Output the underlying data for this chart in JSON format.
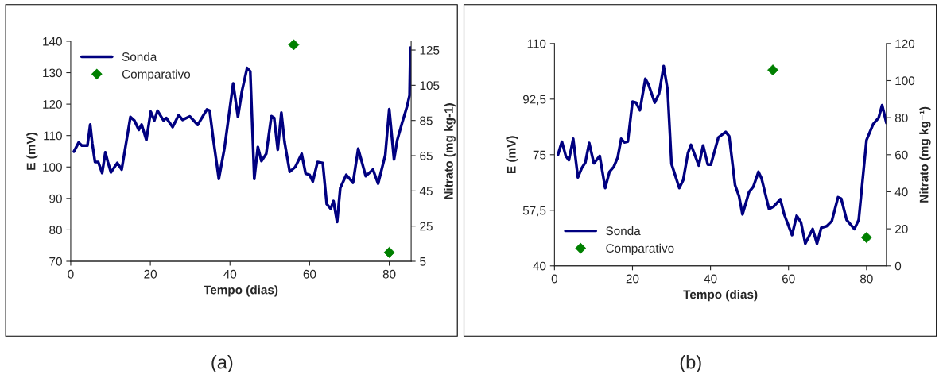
{
  "chart_data": [
    {
      "type": "line",
      "xlabel": "Tempo (dias)",
      "ylabel": "E (mV)",
      "y2label": "Nitrato (mg kg-1)",
      "annotations": [
        "(a)"
      ],
      "legend": "top left",
      "grid": false,
      "xlim": [
        0,
        85.5
      ],
      "xticks": [
        0,
        20,
        40,
        60,
        80
      ],
      "ylim": [
        70,
        140
      ],
      "yticks": [
        70,
        80,
        90,
        100,
        110,
        120,
        130,
        140
      ],
      "y2lim": [
        5,
        130
      ],
      "y2ticks": [
        5,
        25,
        45,
        65,
        85,
        105,
        125
      ],
      "series": [
        {
          "name": "Sonda",
          "color": "#000080",
          "marker": "none",
          "line_style": "solid",
          "x": [
            0.8,
            2.0,
            2.8,
            4.2,
            4.9,
            5.4,
            6.1,
            6.9,
            7.9,
            8.7,
            9.3,
            10.1,
            11.7,
            12.8,
            15.0,
            16.0,
            17.1,
            17.8,
            19.0,
            20.1,
            21.0,
            21.8,
            23.3,
            24.0,
            25.6,
            27.1,
            28.1,
            29.9,
            31.9,
            34.2,
            34.9,
            35.8,
            37.2,
            38.6,
            40.8,
            42.0,
            43.0,
            44.3,
            45.1,
            46.1,
            47.0,
            47.9,
            49.1,
            50.4,
            51.1,
            52.0,
            52.9,
            53.7,
            55.0,
            56.4,
            58.0,
            59.0,
            60.0,
            60.8,
            62.0,
            63.3,
            64.3,
            65.3,
            66.0,
            66.9,
            67.7,
            69.2,
            70.9,
            72.2,
            74.1,
            75.9,
            77.2,
            79.0,
            80.0,
            81.2,
            82.0,
            83.2,
            84.5,
            85.1,
            85.3
          ],
          "values": [
            104.9,
            107.8,
            106.8,
            106.8,
            113.5,
            107.6,
            101.6,
            101.6,
            98.1,
            104.7,
            101.7,
            98.3,
            101.3,
            99.2,
            115.9,
            114.8,
            111.8,
            113.5,
            108.6,
            117.6,
            114.8,
            117.9,
            114.8,
            115.6,
            112.7,
            116.5,
            115.0,
            116.1,
            113.4,
            118.3,
            117.9,
            108.9,
            96.2,
            105.9,
            126.6,
            115.9,
            124.1,
            131.5,
            130.4,
            96.2,
            106.4,
            101.9,
            104.2,
            116.2,
            115.6,
            105.5,
            117.3,
            108.0,
            98.5,
            100.0,
            104.2,
            97.9,
            97.5,
            95.4,
            101.6,
            101.3,
            88.2,
            86.7,
            89.2,
            82.5,
            93.3,
            97.5,
            95.0,
            105.8,
            97.1,
            99.2,
            94.7,
            103.8,
            118.4,
            102.4,
            108.5,
            113.9,
            119.4,
            122.8,
            138
          ]
        },
        {
          "name": "Comparativo",
          "type": "scatter",
          "axis": "y2",
          "color": "#008000",
          "marker": "diamond",
          "x": [
            56,
            80
          ],
          "values": [
            128,
            10
          ]
        }
      ]
    },
    {
      "type": "line",
      "xlabel": "Tempo (dias)",
      "ylabel": "E (mV)",
      "y2label": "Nitrato (mg kg⁻¹)",
      "annotations": [
        "(b)"
      ],
      "legend": "bottom left",
      "grid": false,
      "xlim": [
        0,
        85.1
      ],
      "xticks": [
        0,
        20,
        40,
        60,
        80
      ],
      "ylim": [
        40,
        110
      ],
      "yticks": [
        40,
        {
          "value": 57.5,
          "label": "57,5"
        },
        75,
        {
          "value": 92.5,
          "label": "92,5"
        },
        110
      ],
      "y2lim": [
        0,
        120
      ],
      "y2ticks": [
        0,
        20,
        40,
        60,
        80,
        100,
        120
      ],
      "series": [
        {
          "name": "Sonda",
          "color": "#000080",
          "marker": "none",
          "line_style": "solid",
          "x": [
            0.9,
            1.9,
            2.9,
            3.7,
            4.8,
            6.0,
            7.0,
            7.9,
            8.9,
            10.1,
            11.6,
            13.0,
            14.1,
            15.2,
            16.2,
            17.1,
            17.9,
            18.8,
            20.0,
            20.9,
            21.9,
            23.3,
            24.1,
            25.7,
            26.8,
            28.0,
            29.0,
            30.0,
            32.0,
            33.0,
            34.2,
            35.0,
            37.0,
            38.1,
            39.3,
            40.1,
            42.0,
            43.9,
            44.8,
            46.3,
            47.3,
            48.2,
            49.9,
            51.0,
            52.3,
            53.1,
            55.0,
            56.2,
            57.9,
            58.9,
            60.9,
            62.1,
            63.2,
            64.3,
            66.2,
            67.3,
            68.4,
            69.8,
            71.1,
            72.7,
            73.5,
            74.9,
            76.9,
            78.0,
            80.0,
            81.7,
            83.1,
            84.0,
            85.1
          ],
          "values": [
            75.0,
            79.1,
            74.6,
            73.3,
            80.0,
            67.9,
            70.8,
            72.5,
            78.7,
            72.3,
            74.6,
            64.5,
            69.6,
            71.2,
            74.1,
            80.0,
            78.9,
            79.1,
            91.7,
            91.4,
            89.0,
            98.9,
            97.1,
            91.4,
            94.2,
            102.9,
            95.4,
            72.1,
            64.5,
            67.0,
            75.4,
            78.1,
            71.6,
            77.9,
            71.9,
            71.9,
            80.4,
            82.2,
            80.8,
            65.4,
            62.0,
            56.2,
            63.3,
            65.0,
            69.6,
            67.5,
            57.9,
            58.7,
            61.0,
            56.2,
            49.7,
            55.8,
            53.7,
            47.0,
            51.6,
            47.0,
            52.0,
            52.5,
            54.1,
            61.6,
            61.2,
            54.5,
            51.6,
            54.5,
            79.6,
            84.6,
            86.6,
            90.6,
            85.0
          ]
        },
        {
          "name": "Comparativo",
          "type": "scatter",
          "axis": "y2",
          "color": "#008000",
          "marker": "diamond",
          "x": [
            56,
            80
          ],
          "values": [
            105.7,
            15.3
          ]
        }
      ]
    }
  ]
}
